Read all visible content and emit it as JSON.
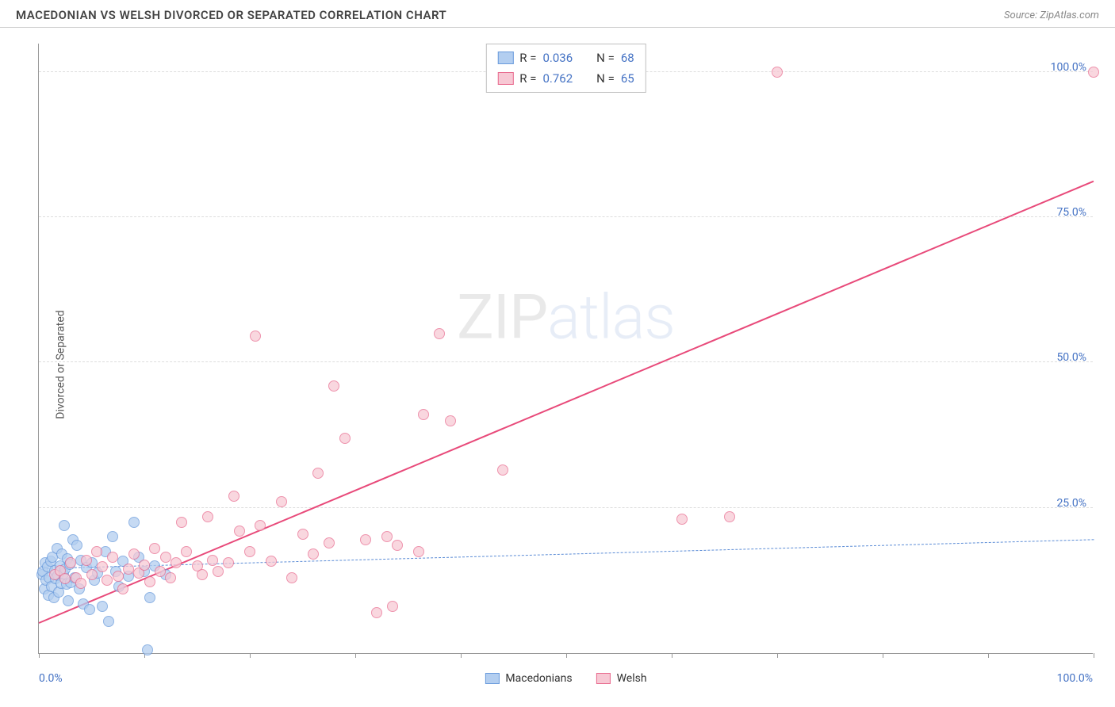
{
  "header": {
    "title": "MACEDONIAN VS WELSH DIVORCED OR SEPARATED CORRELATION CHART",
    "source": "Source: ZipAtlas.com"
  },
  "ylabel": "Divorced or Separated",
  "watermark": {
    "bold": "ZIP",
    "light": "atlas"
  },
  "chart": {
    "type": "scatter",
    "xlim": [
      0,
      100
    ],
    "ylim": [
      0,
      105
    ],
    "xticks_major": [
      0,
      50,
      100
    ],
    "xticks_minor": [
      10,
      20,
      30,
      40,
      60,
      70,
      80,
      90
    ],
    "ytick_positions": [
      25,
      50,
      75,
      100
    ],
    "xtick_labels": {
      "left": "0.0%",
      "right": "100.0%"
    },
    "ytick_labels": [
      "25.0%",
      "50.0%",
      "75.0%",
      "100.0%"
    ],
    "grid_color": "#dddddd",
    "axis_color": "#999999",
    "tick_label_color": "#4472c4",
    "axis_label_color": "#555555",
    "background_color": "#ffffff",
    "series": [
      {
        "key": "macedonians",
        "name": "Macedonians",
        "fill": "#b3cef0",
        "stroke": "#6a9bdc",
        "opacity": 0.75,
        "marker_r": 7,
        "R": "0.036",
        "N": "68",
        "trend": {
          "y_at_x0": 14.5,
          "y_at_x100": 19.5,
          "color": "#5b8cd6",
          "width": 1.5,
          "dash": true
        },
        "points": [
          [
            0.3,
            13.5
          ],
          [
            0.4,
            14.0
          ],
          [
            0.5,
            11.0
          ],
          [
            0.6,
            15.5
          ],
          [
            0.7,
            12.5
          ],
          [
            0.8,
            14.8
          ],
          [
            0.9,
            10.0
          ],
          [
            1.0,
            13.0
          ],
          [
            1.1,
            15.8
          ],
          [
            1.2,
            11.5
          ],
          [
            1.3,
            16.5
          ],
          [
            1.4,
            9.5
          ],
          [
            1.5,
            14.2
          ],
          [
            1.6,
            12.8
          ],
          [
            1.7,
            18.0
          ],
          [
            1.8,
            13.3
          ],
          [
            1.9,
            10.5
          ],
          [
            2.0,
            15.0
          ],
          [
            2.1,
            12.0
          ],
          [
            2.2,
            17.0
          ],
          [
            2.3,
            13.7
          ],
          [
            2.4,
            22.0
          ],
          [
            2.5,
            14.5
          ],
          [
            2.6,
            11.8
          ],
          [
            2.7,
            16.2
          ],
          [
            2.8,
            9.0
          ],
          [
            2.9,
            15.3
          ],
          [
            3.0,
            12.2
          ],
          [
            3.2,
            19.5
          ],
          [
            3.4,
            13.0
          ],
          [
            3.6,
            18.5
          ],
          [
            3.8,
            11.0
          ],
          [
            4.0,
            16.0
          ],
          [
            4.2,
            8.5
          ],
          [
            4.5,
            14.7
          ],
          [
            4.8,
            7.5
          ],
          [
            5.0,
            15.5
          ],
          [
            5.3,
            12.5
          ],
          [
            5.6,
            13.8
          ],
          [
            6.0,
            8.0
          ],
          [
            6.3,
            17.5
          ],
          [
            6.6,
            5.5
          ],
          [
            7.0,
            20.0
          ],
          [
            7.3,
            14.0
          ],
          [
            7.6,
            11.5
          ],
          [
            8.0,
            15.8
          ],
          [
            8.5,
            13.2
          ],
          [
            9.0,
            22.5
          ],
          [
            9.5,
            16.5
          ],
          [
            10.0,
            14.0
          ],
          [
            10.3,
            0.5
          ],
          [
            10.5,
            9.5
          ],
          [
            11.0,
            15.0
          ],
          [
            12.0,
            13.5
          ]
        ]
      },
      {
        "key": "welsh",
        "name": "Welsh",
        "fill": "#f7c8d4",
        "stroke": "#e86a8e",
        "opacity": 0.72,
        "marker_r": 7,
        "R": "0.762",
        "N": "65",
        "trend": {
          "y_at_x0": 5.0,
          "y_at_x100": 81.0,
          "color": "#e84a7a",
          "width": 2.5,
          "dash": false
        },
        "points": [
          [
            1.5,
            13.5
          ],
          [
            2.0,
            14.2
          ],
          [
            2.5,
            12.8
          ],
          [
            3.0,
            15.5
          ],
          [
            3.5,
            13.0
          ],
          [
            4.0,
            12.0
          ],
          [
            4.5,
            16.0
          ],
          [
            5.0,
            13.5
          ],
          [
            5.5,
            17.5
          ],
          [
            6.0,
            14.8
          ],
          [
            6.5,
            12.5
          ],
          [
            7.0,
            16.5
          ],
          [
            7.5,
            13.2
          ],
          [
            8.0,
            11.0
          ],
          [
            8.5,
            14.5
          ],
          [
            9.0,
            17.0
          ],
          [
            9.5,
            13.8
          ],
          [
            10.0,
            15.2
          ],
          [
            10.5,
            12.3
          ],
          [
            11.0,
            18.0
          ],
          [
            11.5,
            14.0
          ],
          [
            12.0,
            16.5
          ],
          [
            12.5,
            13.0
          ],
          [
            13.0,
            15.5
          ],
          [
            13.5,
            22.5
          ],
          [
            14.0,
            17.5
          ],
          [
            15.0,
            15.0
          ],
          [
            15.5,
            13.5
          ],
          [
            16.0,
            23.5
          ],
          [
            16.5,
            16.0
          ],
          [
            17.0,
            14.0
          ],
          [
            18.0,
            15.5
          ],
          [
            18.5,
            27.0
          ],
          [
            19.0,
            21.0
          ],
          [
            20.0,
            17.5
          ],
          [
            20.5,
            54.5
          ],
          [
            21.0,
            22.0
          ],
          [
            22.0,
            15.8
          ],
          [
            23.0,
            26.0
          ],
          [
            24.0,
            13.0
          ],
          [
            25.0,
            20.5
          ],
          [
            26.0,
            17.0
          ],
          [
            26.5,
            31.0
          ],
          [
            27.5,
            19.0
          ],
          [
            28.0,
            46.0
          ],
          [
            29.0,
            37.0
          ],
          [
            31.0,
            19.5
          ],
          [
            32.0,
            7.0
          ],
          [
            33.0,
            20.0
          ],
          [
            33.5,
            8.0
          ],
          [
            34.0,
            18.5
          ],
          [
            36.0,
            17.5
          ],
          [
            36.5,
            41.0
          ],
          [
            38.0,
            55.0
          ],
          [
            39.0,
            40.0
          ],
          [
            44.0,
            31.5
          ],
          [
            61.0,
            23.0
          ],
          [
            65.5,
            23.5
          ],
          [
            70.0,
            100.0
          ],
          [
            100.0,
            100.0
          ]
        ]
      }
    ],
    "legend_top": {
      "border": "#bfbfbf",
      "text_color": "#333333",
      "value_color": "#4472c4",
      "rows": [
        {
          "series": "macedonians",
          "r_text": "R =",
          "n_text": "N ="
        },
        {
          "series": "welsh",
          "r_text": "R =",
          "n_text": "N ="
        }
      ]
    },
    "legend_bottom": {
      "items": [
        {
          "series": "macedonians"
        },
        {
          "series": "welsh"
        }
      ]
    }
  }
}
